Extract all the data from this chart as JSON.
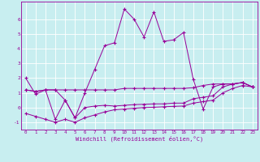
{
  "xlabel": "Windchill (Refroidissement éolien,°C)",
  "bg_color": "#c8eef0",
  "line_color": "#990099",
  "grid_color": "#ffffff",
  "xlim": [
    -0.5,
    23.5
  ],
  "ylim": [
    -1.5,
    7.2
  ],
  "yticks": [
    -1,
    0,
    1,
    2,
    3,
    4,
    5,
    6
  ],
  "xticks": [
    0,
    1,
    2,
    3,
    4,
    5,
    6,
    7,
    8,
    9,
    10,
    11,
    12,
    13,
    14,
    15,
    16,
    17,
    18,
    19,
    20,
    21,
    22,
    23
  ],
  "series": [
    [
      2.0,
      0.9,
      1.2,
      -0.8,
      0.5,
      -0.7,
      1.0,
      2.6,
      4.2,
      4.4,
      6.7,
      6.0,
      4.8,
      6.5,
      4.5,
      4.6,
      5.1,
      1.9,
      -0.1,
      1.4,
      1.6,
      1.6,
      1.7,
      1.4
    ],
    [
      1.2,
      1.1,
      1.2,
      1.2,
      1.2,
      1.2,
      1.2,
      1.2,
      1.2,
      1.2,
      1.3,
      1.3,
      1.3,
      1.3,
      1.3,
      1.3,
      1.3,
      1.35,
      1.5,
      1.6,
      1.6,
      1.6,
      1.7,
      1.4
    ],
    [
      1.2,
      1.1,
      1.2,
      1.2,
      0.5,
      -0.7,
      0.0,
      0.1,
      0.15,
      0.1,
      0.15,
      0.2,
      0.22,
      0.25,
      0.25,
      0.3,
      0.3,
      0.6,
      0.7,
      0.8,
      1.4,
      1.6,
      1.7,
      1.4
    ],
    [
      -0.4,
      -0.6,
      -0.8,
      -1.0,
      -0.8,
      -1.0,
      -0.7,
      -0.5,
      -0.3,
      -0.15,
      -0.1,
      -0.05,
      0.0,
      0.02,
      0.05,
      0.08,
      0.1,
      0.3,
      0.4,
      0.5,
      1.0,
      1.3,
      1.5,
      1.4
    ]
  ]
}
